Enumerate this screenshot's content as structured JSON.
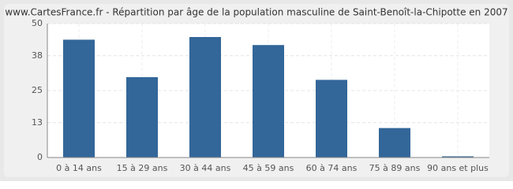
{
  "chart_data": {
    "type": "bar",
    "title": "www.CartesFrance.fr - Répartition par âge de la population masculine de Saint-Benoît-la-Chipotte en 2007",
    "categories": [
      "0 à 14 ans",
      "15 à 29 ans",
      "30 à 44 ans",
      "45 à 59 ans",
      "60 à 74 ans",
      "75 à 89 ans",
      "90 ans et plus"
    ],
    "values": [
      44,
      30,
      45,
      42,
      29,
      11,
      0
    ],
    "color": "#336699",
    "ylim": [
      0,
      50
    ],
    "yticks": [
      0,
      13,
      25,
      38,
      50
    ],
    "grid": true
  }
}
